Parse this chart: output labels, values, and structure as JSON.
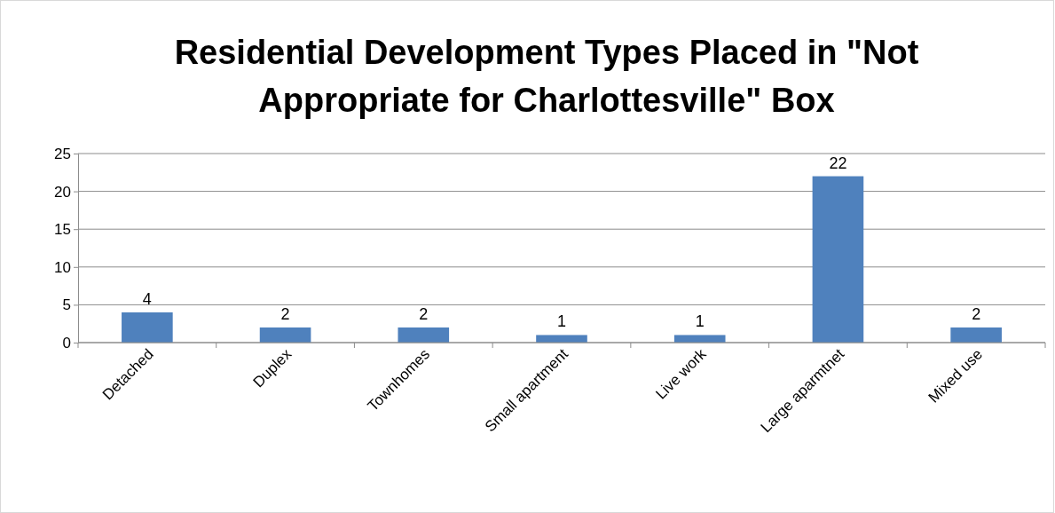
{
  "chart_data": {
    "type": "bar",
    "title": "Residential Development Types Placed in \"Not Appropriate for Charlottesville\" Box",
    "categories": [
      "Detached",
      "Duplex",
      "Townhomes",
      "Small apartment",
      "Live work",
      "Large aparmtnet",
      "Mixed use"
    ],
    "values": [
      4,
      2,
      2,
      1,
      1,
      22,
      2
    ],
    "color": "#4f81bd",
    "ylim": [
      0,
      25
    ],
    "yticks": [
      0,
      5,
      10,
      15,
      20,
      25
    ],
    "grid": "y",
    "data_labels": true
  }
}
